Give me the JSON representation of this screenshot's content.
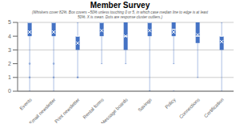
{
  "chart_data": {
    "type": "box",
    "title": "Member Survey",
    "subtitle": "(Whiskers cover 82%. Box covers ~50% unless touching 0 or 5, in which case median line to edge is at least\n50%. X is mean. Dots are response cluster outliers.)",
    "categories": [
      "Events",
      "Email newsletter",
      "Print newsletter",
      "Rental forms",
      "Message boards",
      "Savings",
      "Policy",
      "Connections",
      "Certification"
    ],
    "color": "#4472c4",
    "ylim": [
      0,
      5
    ],
    "yticks": [
      0,
      1,
      2,
      3,
      4,
      5
    ],
    "grid": true,
    "boxes": [
      {
        "q1": 4.0,
        "median": 5.0,
        "q3": 5.0,
        "whislo": 0.0,
        "whishi": 5.0,
        "mean": 4.3,
        "fliers": [
          1.0,
          2.0
        ]
      },
      {
        "q1": 4.0,
        "median": 5.0,
        "q3": 5.0,
        "whislo": 0.0,
        "whishi": 5.0,
        "mean": 4.3,
        "fliers": [
          1.0,
          2.0
        ]
      },
      {
        "q1": 3.0,
        "median": 4.0,
        "q3": 4.0,
        "whislo": 1.0,
        "whishi": 5.0,
        "mean": 3.5,
        "fliers": [
          1.0
        ]
      },
      {
        "q1": 4.0,
        "median": 5.0,
        "q3": 5.0,
        "whislo": 2.0,
        "whishi": 5.0,
        "mean": 4.4,
        "fliers": []
      },
      {
        "q1": 3.0,
        "median": 4.0,
        "q3": 5.0,
        "whislo": 2.0,
        "whishi": 5.0,
        "mean": 4.0,
        "fliers": []
      },
      {
        "q1": 4.0,
        "median": 5.0,
        "q3": 5.0,
        "whislo": 0.0,
        "whishi": 5.0,
        "mean": 4.4,
        "fliers": [
          0.0
        ]
      },
      {
        "q1": 4.0,
        "median": 4.5,
        "q3": 5.0,
        "whislo": 2.0,
        "whishi": 5.0,
        "mean": 4.3,
        "fliers": [
          0.0
        ]
      },
      {
        "q1": 3.5,
        "median": 4.0,
        "q3": 5.0,
        "whislo": 1.0,
        "whishi": 5.0,
        "mean": 4.1,
        "fliers": []
      },
      {
        "q1": 3.0,
        "median": 4.0,
        "q3": 4.0,
        "whislo": 0.0,
        "whishi": 5.0,
        "mean": 3.6,
        "fliers": []
      }
    ]
  }
}
